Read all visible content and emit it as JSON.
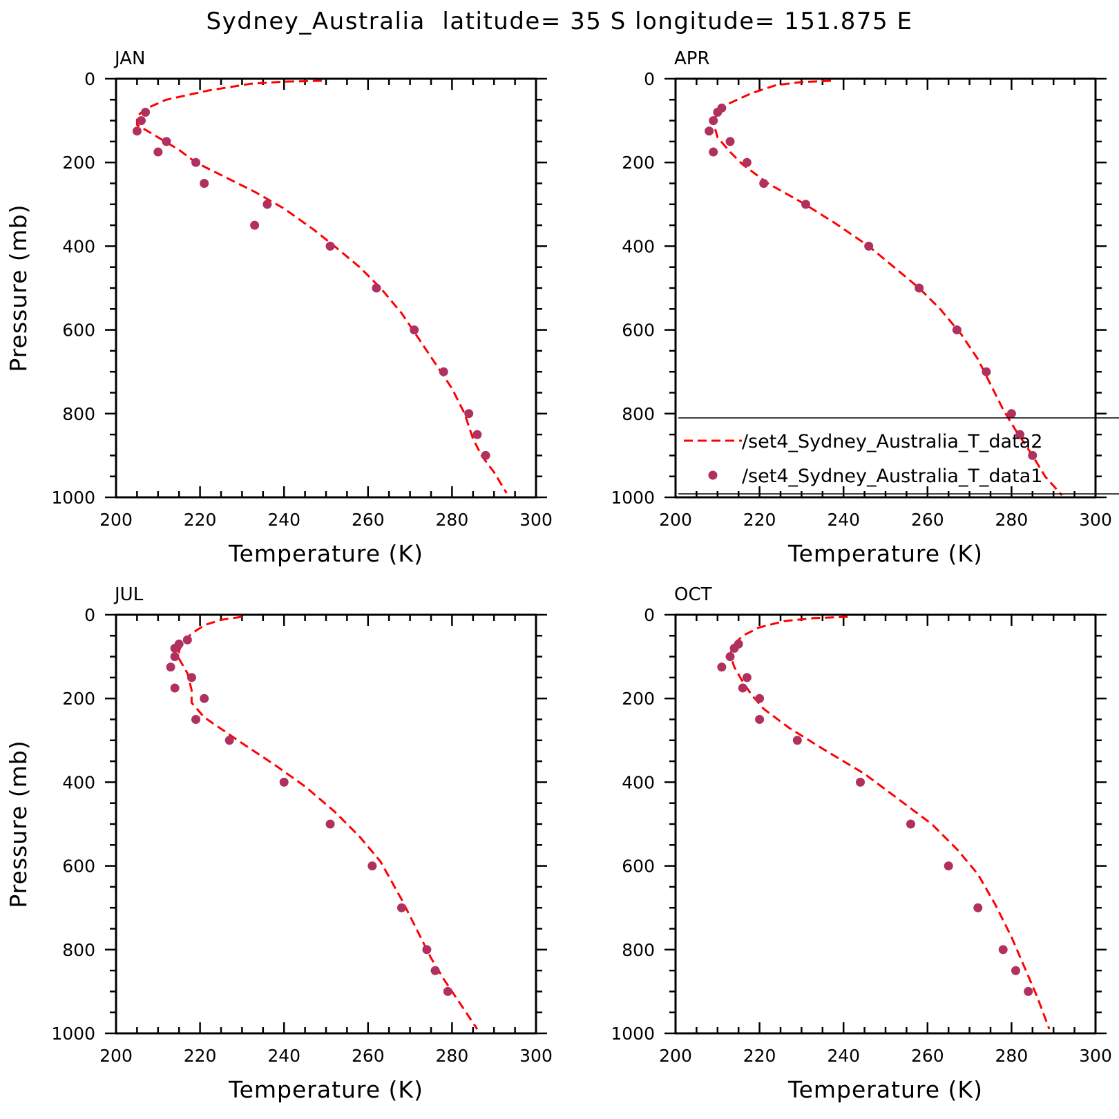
{
  "figure_title": "Sydney_Australia  latitude= 35 S longitude= 151.875 E",
  "colors": {
    "line": "#ff0000",
    "marker": "#b03060",
    "axis": "#000000"
  },
  "legend": {
    "panel": "APR",
    "entries": [
      {
        "label": "/set4_Sydney_Australia_T_data2",
        "style": "dashed-line"
      },
      {
        "label": "/set4_Sydney_Australia_T_data1",
        "style": "marker"
      }
    ]
  },
  "chart_data": [
    {
      "type": "line",
      "title": "JAN",
      "xlabel": "Temperature (K)",
      "ylabel": "Pressure (mb)",
      "xlim": [
        200,
        300
      ],
      "ylim": [
        1000,
        0
      ],
      "xticks": [
        200,
        220,
        240,
        260,
        280,
        300
      ],
      "yticks": [
        0,
        200,
        400,
        600,
        800,
        1000
      ],
      "series": [
        {
          "style": "dashed-line",
          "points": [
            [
              249,
              5
            ],
            [
              240,
              7
            ],
            [
              232,
              12
            ],
            [
              222,
              28
            ],
            [
              212,
              50
            ],
            [
              207,
              72
            ],
            [
              205,
              90
            ],
            [
              205,
              110
            ],
            [
              210,
              140
            ],
            [
              215,
              170
            ],
            [
              219,
              200
            ],
            [
              226,
              235
            ],
            [
              233,
              270
            ],
            [
              240,
              310
            ],
            [
              247,
              360
            ],
            [
              252,
              400
            ],
            [
              258,
              450
            ],
            [
              263,
              500
            ],
            [
              268,
              560
            ],
            [
              272,
              620
            ],
            [
              276,
              680
            ],
            [
              280,
              740
            ],
            [
              283,
              800
            ],
            [
              285,
              860
            ],
            [
              287,
              900
            ],
            [
              290,
              940
            ],
            [
              293,
              990
            ]
          ]
        },
        {
          "style": "marker",
          "points": [
            [
              207,
              80
            ],
            [
              206,
              100
            ],
            [
              205,
              125
            ],
            [
              212,
              150
            ],
            [
              210,
              175
            ],
            [
              219,
              200
            ],
            [
              221,
              250
            ],
            [
              236,
              300
            ],
            [
              233,
              350
            ],
            [
              251,
              400
            ],
            [
              262,
              500
            ],
            [
              271,
              600
            ],
            [
              278,
              700
            ],
            [
              284,
              800
            ],
            [
              286,
              850
            ],
            [
              288,
              900
            ]
          ]
        }
      ]
    },
    {
      "type": "line",
      "title": "APR",
      "xlabel": "Temperature (K)",
      "ylabel": "",
      "xlim": [
        200,
        300
      ],
      "ylim": [
        1000,
        0
      ],
      "xticks": [
        200,
        220,
        240,
        260,
        280,
        300
      ],
      "yticks": [
        0,
        200,
        400,
        600,
        800,
        1000
      ],
      "series": [
        {
          "style": "dashed-line",
          "points": [
            [
              237,
              5
            ],
            [
              230,
              8
            ],
            [
              224,
              15
            ],
            [
              218,
              35
            ],
            [
              213,
              58
            ],
            [
              210,
              80
            ],
            [
              209,
              105
            ],
            [
              210,
              140
            ],
            [
              213,
              175
            ],
            [
              216,
              205
            ],
            [
              222,
              250
            ],
            [
              230,
              295
            ],
            [
              238,
              345
            ],
            [
              246,
              400
            ],
            [
              252,
              450
            ],
            [
              258,
              500
            ],
            [
              263,
              550
            ],
            [
              268,
              610
            ],
            [
              272,
              670
            ],
            [
              275,
              730
            ],
            [
              278,
              790
            ],
            [
              281,
              840
            ],
            [
              285,
              900
            ],
            [
              288,
              950
            ],
            [
              292,
              995
            ]
          ]
        },
        {
          "style": "marker",
          "points": [
            [
              211,
              70
            ],
            [
              210,
              80
            ],
            [
              209,
              100
            ],
            [
              208,
              125
            ],
            [
              213,
              150
            ],
            [
              209,
              175
            ],
            [
              217,
              200
            ],
            [
              221,
              250
            ],
            [
              231,
              300
            ],
            [
              246,
              400
            ],
            [
              258,
              500
            ],
            [
              267,
              600
            ],
            [
              274,
              700
            ],
            [
              280,
              800
            ],
            [
              282,
              850
            ],
            [
              285,
              900
            ]
          ]
        }
      ]
    },
    {
      "type": "line",
      "title": "JUL",
      "xlabel": "Temperature (K)",
      "ylabel": "Pressure (mb)",
      "xlim": [
        200,
        300
      ],
      "ylim": [
        1000,
        0
      ],
      "xticks": [
        200,
        220,
        240,
        260,
        280,
        300
      ],
      "yticks": [
        0,
        200,
        400,
        600,
        800,
        1000
      ],
      "series": [
        {
          "style": "dashed-line",
          "points": [
            [
              230,
              5
            ],
            [
              225,
              12
            ],
            [
              221,
              25
            ],
            [
              218,
              45
            ],
            [
              216,
              65
            ],
            [
              215,
              85
            ],
            [
              215,
              105
            ],
            [
              217,
              140
            ],
            [
              218,
              180
            ],
            [
              218,
              210
            ],
            [
              221,
              245
            ],
            [
              229,
              300
            ],
            [
              238,
              360
            ],
            [
              245,
              410
            ],
            [
              252,
              470
            ],
            [
              258,
              530
            ],
            [
              263,
              590
            ],
            [
              268,
              680
            ],
            [
              272,
              760
            ],
            [
              275,
              820
            ],
            [
              278,
              870
            ],
            [
              282,
              930
            ],
            [
              286,
              990
            ]
          ]
        },
        {
          "style": "marker",
          "points": [
            [
              217,
              60
            ],
            [
              215,
              70
            ],
            [
              214,
              80
            ],
            [
              214,
              100
            ],
            [
              213,
              125
            ],
            [
              218,
              150
            ],
            [
              214,
              175
            ],
            [
              221,
              200
            ],
            [
              219,
              250
            ],
            [
              227,
              300
            ],
            [
              240,
              400
            ],
            [
              251,
              500
            ],
            [
              261,
              600
            ],
            [
              268,
              700
            ],
            [
              274,
              800
            ],
            [
              276,
              850
            ],
            [
              279,
              900
            ]
          ]
        }
      ]
    },
    {
      "type": "line",
      "title": "OCT",
      "xlabel": "Temperature (K)",
      "ylabel": "",
      "xlim": [
        200,
        300
      ],
      "ylim": [
        1000,
        0
      ],
      "xticks": [
        200,
        220,
        240,
        260,
        280,
        300
      ],
      "yticks": [
        0,
        200,
        400,
        600,
        800,
        1000
      ],
      "series": [
        {
          "style": "dashed-line",
          "points": [
            [
              241,
              5
            ],
            [
              233,
              8
            ],
            [
              226,
              15
            ],
            [
              220,
              30
            ],
            [
              216,
              50
            ],
            [
              214,
              70
            ],
            [
              213,
              95
            ],
            [
              214,
              125
            ],
            [
              216,
              160
            ],
            [
              218,
              190
            ],
            [
              221,
              225
            ],
            [
              227,
              270
            ],
            [
              235,
              320
            ],
            [
              245,
              380
            ],
            [
              253,
              440
            ],
            [
              261,
              500
            ],
            [
              267,
              560
            ],
            [
              272,
              620
            ],
            [
              276,
              690
            ],
            [
              280,
              770
            ],
            [
              283,
              840
            ],
            [
              286,
              910
            ],
            [
              289,
              990
            ]
          ]
        },
        {
          "style": "marker",
          "points": [
            [
              215,
              70
            ],
            [
              214,
              80
            ],
            [
              213,
              100
            ],
            [
              211,
              125
            ],
            [
              217,
              150
            ],
            [
              216,
              175
            ],
            [
              220,
              200
            ],
            [
              220,
              250
            ],
            [
              229,
              300
            ],
            [
              244,
              400
            ],
            [
              256,
              500
            ],
            [
              265,
              600
            ],
            [
              272,
              700
            ],
            [
              278,
              800
            ],
            [
              281,
              850
            ],
            [
              284,
              900
            ]
          ]
        }
      ]
    }
  ]
}
